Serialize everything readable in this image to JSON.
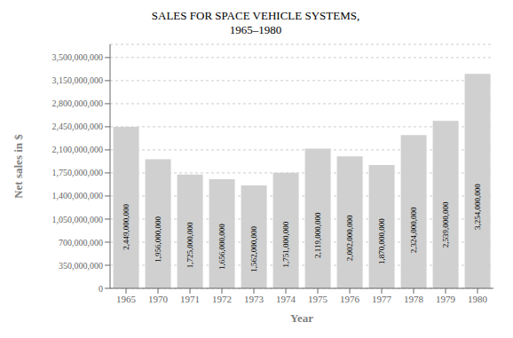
{
  "chart_data": {
    "type": "bar",
    "title": "SALES FOR SPACE VEHICLE SYSTEMS,",
    "subtitle": "1965–1980",
    "xlabel": "Year",
    "ylabel": "Net sales in $",
    "categories": [
      "1965",
      "1970",
      "1971",
      "1972",
      "1973",
      "1974",
      "1975",
      "1976",
      "1977",
      "1978",
      "1979",
      "1980"
    ],
    "values": [
      2449000000,
      1956000000,
      1725000000,
      1656000000,
      1562000000,
      1751000000,
      2119000000,
      2002000000,
      1870000000,
      2324000000,
      2539000000,
      3254000000
    ],
    "value_labels": [
      "2,449,000,000",
      "1,956,000,000",
      "1,725,000,000",
      "1,656,000,000",
      "1,562,000,000",
      "1,751,000,000",
      "2,119,000,000",
      "2,002,000,000",
      "1,870,000,000",
      "2,324,000,000",
      "2,539,000,000",
      "3,254,000,000"
    ],
    "data_labels": true,
    "color": "#d0d0d0",
    "ylim": [
      0,
      3700000000
    ],
    "yticks": [
      0,
      {
        "value": 350000000,
        "label": "350,000,000"
      },
      {
        "value": 700000000,
        "label": "700,000,000"
      },
      {
        "value": 1050000000,
        "label": "1,050,000,000"
      },
      {
        "value": 1400000000,
        "label": "1,400,000,000"
      },
      {
        "value": 1750000000,
        "label": "1,750,000,000"
      },
      {
        "value": 2100000000,
        "label": "2,100,000,000"
      },
      {
        "value": 2450000000,
        "label": "2,450,000,000"
      },
      {
        "value": 2800000000,
        "label": "2,800,000,000"
      },
      {
        "value": 3150000000,
        "label": "3,150,000,000"
      },
      {
        "value": 3500000000,
        "label": "3,500,000,000"
      }
    ],
    "grid": true
  }
}
